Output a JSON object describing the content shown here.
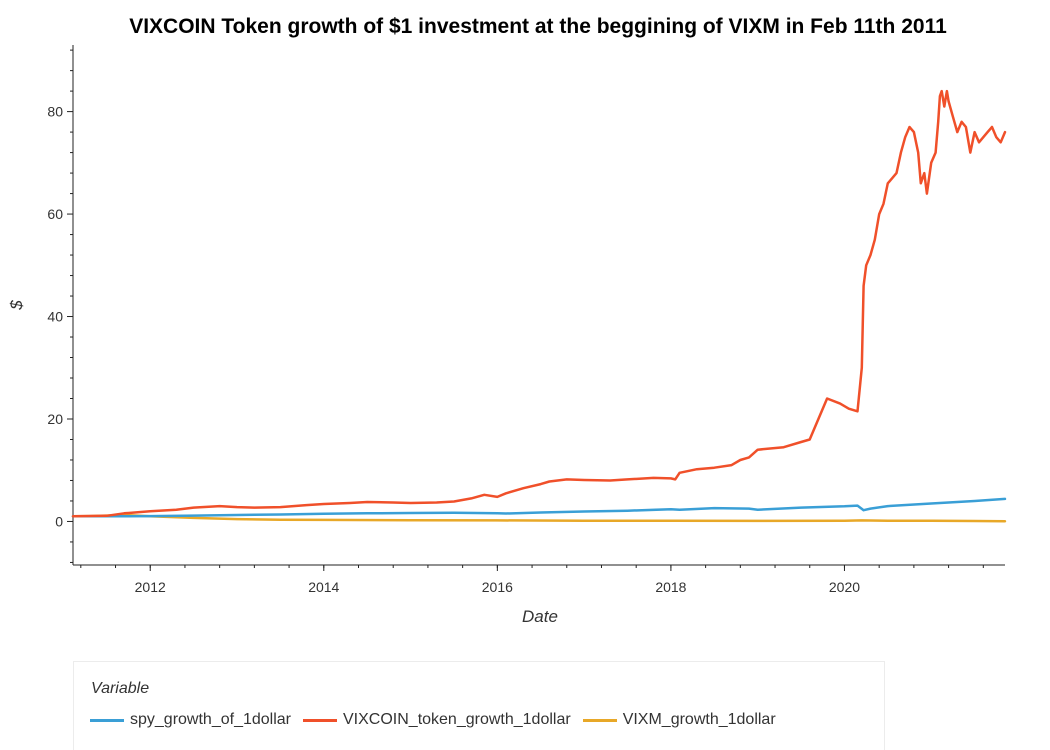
{
  "chart_data": {
    "type": "line",
    "title": "VIXCOIN Token growth of $1 investment at the beggining of VIXM in Feb 11th 2011",
    "xlabel": "Date",
    "ylabel": "$",
    "xlim": [
      2011.11,
      2021.85
    ],
    "ylim": [
      -8.5,
      93
    ],
    "x_ticks": [
      2012,
      2014,
      2016,
      2018,
      2020
    ],
    "x_tick_labels": [
      "2012",
      "2014",
      "2016",
      "2018",
      "2020"
    ],
    "y_ticks": [
      0,
      20,
      40,
      60,
      80
    ],
    "y_tick_labels": [
      "0",
      "20",
      "40",
      "60",
      "80"
    ],
    "grid": false,
    "legend": {
      "title": "Variable",
      "placement": "bottom"
    },
    "series": [
      {
        "name": "spy_growth_of_1dollar",
        "color": "#3a9fd6",
        "x": [
          2011.11,
          2011.5,
          2012.0,
          2012.5,
          2013.0,
          2013.5,
          2014.0,
          2014.5,
          2015.0,
          2015.5,
          2016.0,
          2016.1,
          2016.5,
          2017.0,
          2017.5,
          2018.0,
          2018.1,
          2018.5,
          2018.9,
          2019.0,
          2019.5,
          2020.0,
          2020.15,
          2020.22,
          2020.3,
          2020.5,
          2021.0,
          2021.5,
          2021.85
        ],
        "y": [
          1.0,
          1.0,
          1.05,
          1.15,
          1.25,
          1.35,
          1.5,
          1.6,
          1.65,
          1.7,
          1.6,
          1.55,
          1.75,
          1.95,
          2.1,
          2.4,
          2.3,
          2.6,
          2.5,
          2.3,
          2.7,
          2.95,
          3.1,
          2.2,
          2.5,
          3.0,
          3.5,
          4.0,
          4.4
        ]
      },
      {
        "name": "VIXCOIN_token_growth_1dollar",
        "color": "#f0502a",
        "x": [
          2011.11,
          2011.5,
          2011.7,
          2012.0,
          2012.3,
          2012.5,
          2012.8,
          2013.0,
          2013.2,
          2013.5,
          2013.8,
          2014.0,
          2014.3,
          2014.5,
          2014.8,
          2015.0,
          2015.3,
          2015.5,
          2015.7,
          2015.85,
          2016.0,
          2016.1,
          2016.3,
          2016.5,
          2016.6,
          2016.8,
          2017.0,
          2017.3,
          2017.5,
          2017.8,
          2018.0,
          2018.05,
          2018.1,
          2018.3,
          2018.5,
          2018.7,
          2018.8,
          2018.9,
          2019.0,
          2019.3,
          2019.5,
          2019.6,
          2019.7,
          2019.8,
          2019.95,
          2020.05,
          2020.15,
          2020.2,
          2020.22,
          2020.25,
          2020.3,
          2020.35,
          2020.4,
          2020.45,
          2020.5,
          2020.55,
          2020.6,
          2020.65,
          2020.7,
          2020.75,
          2020.8,
          2020.85,
          2020.88,
          2020.92,
          2020.95,
          2021.0,
          2021.05,
          2021.08,
          2021.1,
          2021.12,
          2021.15,
          2021.18,
          2021.2,
          2021.25,
          2021.3,
          2021.35,
          2021.4,
          2021.45,
          2021.5,
          2021.55,
          2021.6,
          2021.65,
          2021.7,
          2021.75,
          2021.8,
          2021.85
        ],
        "y": [
          1.0,
          1.1,
          1.6,
          2.0,
          2.3,
          2.7,
          3.0,
          2.8,
          2.7,
          2.8,
          3.2,
          3.4,
          3.6,
          3.8,
          3.7,
          3.6,
          3.7,
          3.9,
          4.5,
          5.2,
          4.8,
          5.5,
          6.5,
          7.3,
          7.8,
          8.2,
          8.1,
          8.0,
          8.2,
          8.5,
          8.4,
          8.2,
          9.5,
          10.2,
          10.5,
          11.0,
          12.0,
          12.5,
          14.0,
          14.5,
          15.5,
          16.0,
          20.0,
          24.0,
          23.0,
          22.0,
          21.5,
          30.0,
          46.0,
          50.0,
          52.0,
          55.0,
          60.0,
          62.0,
          66.0,
          67.0,
          68.0,
          72.0,
          75.0,
          77.0,
          76.0,
          72.0,
          66.0,
          68.0,
          64.0,
          70.0,
          72.0,
          78.0,
          83.0,
          84.0,
          81.0,
          84.0,
          82.0,
          79.0,
          76.0,
          78.0,
          77.0,
          72.0,
          76.0,
          74.0,
          75.0,
          76.0,
          77.0,
          75.0,
          74.0,
          76.0
        ]
      },
      {
        "name": "VIXM_growth_1dollar",
        "color": "#e8a828",
        "x": [
          2011.11,
          2011.3,
          2011.7,
          2012.0,
          2012.5,
          2013.0,
          2013.5,
          2014.0,
          2015.0,
          2016.0,
          2017.0,
          2018.0,
          2019.0,
          2020.0,
          2020.2,
          2020.5,
          2021.0,
          2021.5,
          2021.85
        ],
        "y": [
          1.0,
          1.05,
          1.25,
          1.0,
          0.7,
          0.45,
          0.35,
          0.3,
          0.25,
          0.2,
          0.15,
          0.12,
          0.1,
          0.12,
          0.2,
          0.15,
          0.12,
          0.08,
          0.05
        ]
      }
    ]
  }
}
